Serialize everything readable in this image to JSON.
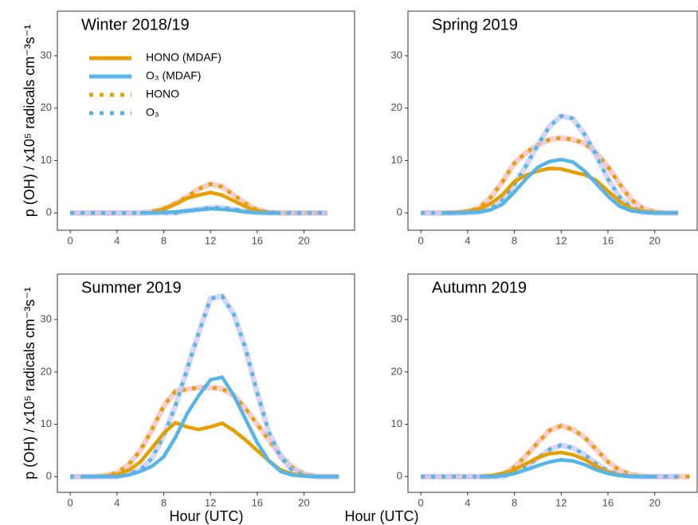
{
  "chart_data": [
    {
      "type": "line",
      "title": "Winter 2018/19",
      "ylabel": "p (OH) / x10⁵ radicals cm⁻³s⁻¹",
      "legend": true,
      "x": [
        0,
        1,
        2,
        3,
        4,
        5,
        6,
        7,
        8,
        9,
        10,
        11,
        12,
        13,
        14,
        15,
        16,
        17,
        18,
        19,
        20,
        21,
        22,
        23
      ],
      "xlim": [
        -1.1,
        24.4
      ],
      "xticks": [
        0,
        4,
        8,
        12,
        16,
        20
      ],
      "ylim": [
        -3.3,
        38.5
      ],
      "yticks": [
        0,
        10,
        20,
        30
      ],
      "series": [
        {
          "name": "HONO (MDAF)",
          "color": "#E69F00",
          "style": "solid",
          "values": [
            null,
            null,
            null,
            null,
            null,
            null,
            null,
            0.3,
            0.7,
            1.7,
            2.8,
            3.4,
            3.9,
            3.4,
            2.3,
            1.2,
            0.4,
            0.1,
            0,
            null,
            null,
            null,
            null,
            null
          ]
        },
        {
          "name": "O₃ (MDAF)",
          "color": "#56B4E9",
          "style": "solid",
          "values": [
            null,
            null,
            null,
            null,
            null,
            null,
            0,
            0,
            0.1,
            0.2,
            0.4,
            0.6,
            0.8,
            0.7,
            0.5,
            0.2,
            0.05,
            0,
            0,
            null,
            null,
            null,
            null,
            null
          ]
        },
        {
          "name": "HONO",
          "color": "#E69F00",
          "style": "dotted",
          "halo": "#f6b8b8",
          "values": [
            0,
            0,
            0,
            0,
            0,
            0,
            0,
            0.2,
            0.8,
            1.8,
            3.1,
            4.6,
            5.5,
            5.0,
            3.4,
            1.8,
            0.6,
            0.1,
            0,
            0,
            0,
            0,
            0,
            null
          ]
        },
        {
          "name": "O₃",
          "color": "#56B4E9",
          "style": "dotted",
          "halo": "#c8c8f2",
          "values": [
            0,
            0,
            0,
            0,
            0,
            0,
            0,
            0,
            0,
            0,
            0.4,
            0.7,
            1.0,
            1.0,
            0.7,
            0.3,
            0.1,
            0,
            0,
            0,
            0,
            0,
            0,
            null
          ]
        }
      ]
    },
    {
      "type": "line",
      "title": "Spring 2019",
      "x": [
        0,
        1,
        2,
        3,
        4,
        5,
        6,
        7,
        8,
        9,
        10,
        11,
        12,
        13,
        14,
        15,
        16,
        17,
        18,
        19,
        20,
        21,
        22,
        23
      ],
      "xlim": [
        -1.1,
        23.7
      ],
      "xticks": [
        0,
        4,
        8,
        12,
        16,
        20
      ],
      "ylim": [
        -3.3,
        38.5
      ],
      "yticks": [
        0,
        10,
        20,
        30
      ],
      "series": [
        {
          "name": "HONO (MDAF)",
          "color": "#E69F00",
          "style": "solid",
          "values": [
            null,
            null,
            0,
            0.1,
            0.3,
            0.8,
            1.8,
            3.5,
            6.0,
            7.2,
            8.0,
            8.5,
            8.4,
            7.8,
            7.3,
            6.2,
            4.2,
            2.2,
            0.8,
            0.3,
            0.1,
            0,
            0,
            null
          ]
        },
        {
          "name": "O₃ (MDAF)",
          "color": "#56B4E9",
          "style": "solid",
          "values": [
            null,
            null,
            0,
            0,
            0.1,
            0.2,
            0.6,
            1.7,
            4.0,
            6.5,
            8.7,
            9.8,
            10.2,
            9.7,
            8.0,
            5.6,
            3.2,
            1.3,
            0.4,
            0.1,
            0,
            0,
            0,
            null
          ]
        },
        {
          "name": "HONO",
          "color": "#E69F00",
          "style": "dotted",
          "halo": "#f6b8b8",
          "values": [
            0,
            0,
            0,
            0,
            0.3,
            1.0,
            3.0,
            6.0,
            9.5,
            11.5,
            13.0,
            14.0,
            14.3,
            14.0,
            13.3,
            11.5,
            8.8,
            5.5,
            2.5,
            0.8,
            0.2,
            0,
            0,
            null
          ]
        },
        {
          "name": "O₃",
          "color": "#56B4E9",
          "style": "dotted",
          "halo": "#c8c8f2",
          "values": [
            0,
            0,
            0,
            0,
            0,
            0.2,
            0.8,
            2.5,
            5.5,
            9.0,
            13.0,
            16.5,
            18.5,
            18.0,
            15.0,
            11.0,
            6.5,
            3.0,
            1.0,
            0.2,
            0,
            0,
            0,
            null
          ]
        }
      ]
    },
    {
      "type": "line",
      "title": "Summer 2019",
      "ylabel": "p (OH) / x10⁵ radicals cm⁻³s⁻¹",
      "xlabel": "Hour (UTC)",
      "x": [
        0,
        1,
        2,
        3,
        4,
        5,
        6,
        7,
        8,
        9,
        10,
        11,
        12,
        13,
        14,
        15,
        16,
        17,
        18,
        19,
        20,
        21,
        22,
        23
      ],
      "xlim": [
        -1.1,
        24.4
      ],
      "xticks": [
        0,
        4,
        8,
        12,
        16,
        20
      ],
      "ylim": [
        -3.0,
        38.7
      ],
      "yticks": [
        0,
        10,
        20,
        30
      ],
      "series": [
        {
          "name": "HONO (MDAF)",
          "color": "#E69F00",
          "style": "solid",
          "values": [
            null,
            0,
            0,
            0.1,
            0.4,
            1.2,
            2.8,
            5.5,
            8.3,
            10.3,
            9.5,
            9.0,
            9.5,
            10.2,
            8.8,
            7.0,
            5.0,
            3.0,
            1.3,
            0.5,
            0.2,
            0,
            0,
            0
          ]
        },
        {
          "name": "O₃ (MDAF)",
          "color": "#56B4E9",
          "style": "solid",
          "values": [
            null,
            0,
            0,
            0,
            0,
            0.3,
            1.0,
            2.0,
            3.8,
            7.5,
            12.0,
            15.5,
            18.5,
            19.0,
            15.5,
            11.0,
            6.5,
            3.0,
            1.0,
            0.3,
            0.1,
            0,
            0,
            0
          ]
        },
        {
          "name": "HONO",
          "color": "#E69F00",
          "style": "dotted",
          "halo": "#f6b8b8",
          "values": [
            0,
            0,
            0,
            0.2,
            0.7,
            2.3,
            5.0,
            9.0,
            13.5,
            16.3,
            16.7,
            17.0,
            17.0,
            16.8,
            15.5,
            13.0,
            10.0,
            7.0,
            4.0,
            1.8,
            0.5,
            0.1,
            0,
            0
          ]
        },
        {
          "name": "O₃",
          "color": "#56B4E9",
          "style": "dotted",
          "halo": "#c8c8f2",
          "values": [
            0,
            0,
            0,
            0,
            0,
            0.5,
            1.3,
            3.5,
            7.8,
            13.5,
            20.5,
            27.5,
            34.0,
            34.5,
            31.0,
            24.5,
            16.0,
            8.5,
            3.8,
            1.2,
            0.3,
            0,
            0,
            0
          ]
        }
      ]
    },
    {
      "type": "line",
      "title": "Autumn 2019",
      "xlabel": "Hour (UTC)",
      "x": [
        0,
        1,
        2,
        3,
        4,
        5,
        6,
        7,
        8,
        9,
        10,
        11,
        12,
        13,
        14,
        15,
        16,
        17,
        18,
        19,
        20,
        21,
        22,
        23
      ],
      "xlim": [
        -1.1,
        23.7
      ],
      "xticks": [
        0,
        4,
        8,
        12,
        16,
        20
      ],
      "ylim": [
        -3.0,
        38.7
      ],
      "yticks": [
        0,
        10,
        20,
        30
      ],
      "series": [
        {
          "name": "HONO (MDAF)",
          "color": "#E69F00",
          "style": "solid",
          "values": [
            null,
            null,
            null,
            null,
            null,
            0,
            0.2,
            0.6,
            1.3,
            2.5,
            3.6,
            4.4,
            4.6,
            4.2,
            3.3,
            2.0,
            0.9,
            0.3,
            0.1,
            0,
            0,
            null,
            null,
            null
          ]
        },
        {
          "name": "O₃ (MDAF)",
          "color": "#56B4E9",
          "style": "solid",
          "values": [
            null,
            null,
            null,
            null,
            null,
            0,
            0,
            0.2,
            0.6,
            1.3,
            2.1,
            2.8,
            3.2,
            3.0,
            2.3,
            1.3,
            0.6,
            0.2,
            0,
            0,
            0,
            null,
            null,
            null
          ]
        },
        {
          "name": "HONO",
          "color": "#E69F00",
          "style": "dotted",
          "halo": "#f6b8b8",
          "values": [
            0,
            0,
            0,
            0,
            0,
            0,
            0,
            0.5,
            1.8,
            4.0,
            6.5,
            8.8,
            9.7,
            9.0,
            7.5,
            5.2,
            2.8,
            1.2,
            0.4,
            0.1,
            0,
            0,
            0,
            0
          ]
        },
        {
          "name": "O₃",
          "color": "#56B4E9",
          "style": "dotted",
          "halo": "#c8c8f2",
          "values": [
            0,
            0,
            0,
            0,
            0,
            0,
            0,
            0,
            0.8,
            2.0,
            3.5,
            5.2,
            6.0,
            5.5,
            4.2,
            2.5,
            1.1,
            0.4,
            0.1,
            0,
            0,
            0,
            0,
            null
          ]
        }
      ]
    }
  ]
}
